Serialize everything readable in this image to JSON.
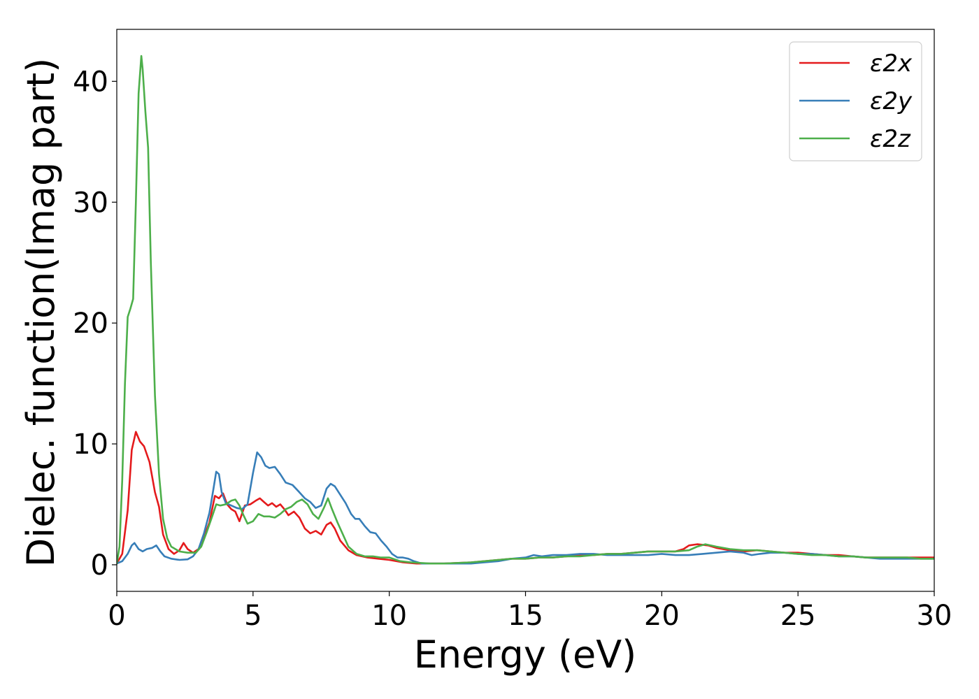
{
  "chart_data": {
    "type": "line",
    "title": "",
    "xlabel": "Energy (eV)",
    "ylabel": "Dielec. function(Imag part)",
    "xlim": [
      0,
      30
    ],
    "ylim": [
      -2.2,
      44.3
    ],
    "xticks": [
      0,
      5,
      10,
      15,
      20,
      25,
      30
    ],
    "yticks": [
      0,
      10,
      20,
      30,
      40
    ],
    "grid": false,
    "legend_position": "top-right",
    "series": [
      {
        "name": "ε2x",
        "color": "#e41a1c",
        "points": [
          [
            0,
            0.1
          ],
          [
            0.2,
            0.9
          ],
          [
            0.4,
            4.5
          ],
          [
            0.55,
            9.5
          ],
          [
            0.7,
            11.0
          ],
          [
            0.85,
            10.2
          ],
          [
            1.0,
            9.8
          ],
          [
            1.2,
            8.5
          ],
          [
            1.4,
            6.0
          ],
          [
            1.55,
            4.8
          ],
          [
            1.7,
            2.5
          ],
          [
            1.9,
            1.3
          ],
          [
            2.1,
            0.9
          ],
          [
            2.3,
            1.2
          ],
          [
            2.45,
            1.8
          ],
          [
            2.6,
            1.3
          ],
          [
            2.8,
            1.0
          ],
          [
            3.0,
            1.3
          ],
          [
            3.2,
            2.3
          ],
          [
            3.4,
            3.5
          ],
          [
            3.6,
            5.7
          ],
          [
            3.75,
            5.5
          ],
          [
            3.9,
            5.9
          ],
          [
            4.05,
            5.0
          ],
          [
            4.2,
            4.6
          ],
          [
            4.35,
            4.4
          ],
          [
            4.5,
            3.6
          ],
          [
            4.7,
            4.9
          ],
          [
            4.9,
            5.0
          ],
          [
            5.1,
            5.3
          ],
          [
            5.25,
            5.5
          ],
          [
            5.4,
            5.2
          ],
          [
            5.55,
            4.9
          ],
          [
            5.7,
            5.1
          ],
          [
            5.85,
            4.8
          ],
          [
            6.0,
            5.0
          ],
          [
            6.15,
            4.6
          ],
          [
            6.3,
            4.1
          ],
          [
            6.5,
            4.4
          ],
          [
            6.7,
            3.9
          ],
          [
            6.9,
            3.0
          ],
          [
            7.1,
            2.6
          ],
          [
            7.3,
            2.8
          ],
          [
            7.5,
            2.5
          ],
          [
            7.7,
            3.3
          ],
          [
            7.85,
            3.5
          ],
          [
            8.0,
            3.0
          ],
          [
            8.2,
            2.0
          ],
          [
            8.5,
            1.2
          ],
          [
            8.8,
            0.8
          ],
          [
            9.2,
            0.6
          ],
          [
            9.6,
            0.5
          ],
          [
            10.0,
            0.4
          ],
          [
            10.5,
            0.2
          ],
          [
            11.0,
            0.1
          ],
          [
            12.0,
            0.1
          ],
          [
            13.0,
            0.2
          ],
          [
            13.5,
            0.3
          ],
          [
            14.0,
            0.4
          ],
          [
            14.5,
            0.5
          ],
          [
            15.0,
            0.5
          ],
          [
            15.5,
            0.6
          ],
          [
            16.0,
            0.6
          ],
          [
            16.5,
            0.7
          ],
          [
            17.0,
            0.8
          ],
          [
            17.5,
            0.8
          ],
          [
            18.0,
            0.9
          ],
          [
            18.5,
            0.9
          ],
          [
            19.0,
            1.0
          ],
          [
            19.5,
            1.1
          ],
          [
            20.0,
            1.1
          ],
          [
            20.5,
            1.1
          ],
          [
            20.8,
            1.3
          ],
          [
            21.0,
            1.6
          ],
          [
            21.3,
            1.7
          ],
          [
            21.7,
            1.6
          ],
          [
            22.0,
            1.4
          ],
          [
            22.5,
            1.2
          ],
          [
            23.0,
            1.1
          ],
          [
            23.5,
            1.2
          ],
          [
            24.0,
            1.1
          ],
          [
            24.5,
            1.0
          ],
          [
            25.0,
            1.0
          ],
          [
            25.5,
            0.9
          ],
          [
            26.0,
            0.8
          ],
          [
            26.5,
            0.8
          ],
          [
            27.0,
            0.7
          ],
          [
            27.5,
            0.6
          ],
          [
            28.0,
            0.6
          ],
          [
            28.5,
            0.6
          ],
          [
            29.0,
            0.6
          ],
          [
            29.5,
            0.6
          ],
          [
            30.0,
            0.6
          ]
        ]
      },
      {
        "name": "ε2y",
        "color": "#377eb8",
        "points": [
          [
            0,
            0.1
          ],
          [
            0.2,
            0.3
          ],
          [
            0.4,
            0.9
          ],
          [
            0.55,
            1.6
          ],
          [
            0.65,
            1.8
          ],
          [
            0.8,
            1.3
          ],
          [
            0.95,
            1.1
          ],
          [
            1.1,
            1.3
          ],
          [
            1.3,
            1.4
          ],
          [
            1.45,
            1.6
          ],
          [
            1.6,
            1.1
          ],
          [
            1.75,
            0.7
          ],
          [
            2.0,
            0.5
          ],
          [
            2.3,
            0.4
          ],
          [
            2.6,
            0.45
          ],
          [
            2.8,
            0.7
          ],
          [
            3.0,
            1.3
          ],
          [
            3.2,
            2.6
          ],
          [
            3.4,
            4.3
          ],
          [
            3.55,
            6.3
          ],
          [
            3.65,
            7.7
          ],
          [
            3.75,
            7.5
          ],
          [
            3.85,
            6.0
          ],
          [
            4.0,
            5.1
          ],
          [
            4.2,
            4.9
          ],
          [
            4.4,
            4.7
          ],
          [
            4.6,
            4.6
          ],
          [
            4.8,
            5.0
          ],
          [
            5.0,
            7.6
          ],
          [
            5.15,
            9.3
          ],
          [
            5.3,
            8.9
          ],
          [
            5.45,
            8.2
          ],
          [
            5.6,
            8.0
          ],
          [
            5.8,
            8.1
          ],
          [
            6.0,
            7.5
          ],
          [
            6.2,
            6.8
          ],
          [
            6.45,
            6.6
          ],
          [
            6.7,
            6.0
          ],
          [
            6.9,
            5.5
          ],
          [
            7.1,
            5.2
          ],
          [
            7.3,
            4.7
          ],
          [
            7.5,
            4.9
          ],
          [
            7.7,
            6.3
          ],
          [
            7.85,
            6.7
          ],
          [
            8.0,
            6.5
          ],
          [
            8.2,
            5.8
          ],
          [
            8.4,
            5.1
          ],
          [
            8.6,
            4.2
          ],
          [
            8.75,
            3.8
          ],
          [
            8.9,
            3.8
          ],
          [
            9.1,
            3.2
          ],
          [
            9.3,
            2.7
          ],
          [
            9.5,
            2.6
          ],
          [
            9.7,
            2.0
          ],
          [
            9.9,
            1.5
          ],
          [
            10.1,
            0.9
          ],
          [
            10.3,
            0.6
          ],
          [
            10.5,
            0.6
          ],
          [
            10.7,
            0.5
          ],
          [
            10.9,
            0.3
          ],
          [
            11.2,
            0.1
          ],
          [
            12.0,
            0.1
          ],
          [
            13.0,
            0.1
          ],
          [
            13.5,
            0.2
          ],
          [
            14.0,
            0.3
          ],
          [
            14.5,
            0.5
          ],
          [
            15.0,
            0.6
          ],
          [
            15.3,
            0.8
          ],
          [
            15.6,
            0.7
          ],
          [
            16.0,
            0.8
          ],
          [
            16.5,
            0.8
          ],
          [
            17.0,
            0.9
          ],
          [
            17.5,
            0.9
          ],
          [
            18.0,
            0.8
          ],
          [
            18.5,
            0.8
          ],
          [
            19.0,
            0.8
          ],
          [
            19.5,
            0.8
          ],
          [
            20.0,
            0.9
          ],
          [
            20.5,
            0.8
          ],
          [
            21.0,
            0.8
          ],
          [
            21.5,
            0.9
          ],
          [
            22.0,
            1.0
          ],
          [
            22.5,
            1.1
          ],
          [
            23.0,
            1.0
          ],
          [
            23.3,
            0.8
          ],
          [
            23.6,
            0.9
          ],
          [
            24.0,
            1.0
          ],
          [
            24.5,
            1.0
          ],
          [
            25.0,
            0.9
          ],
          [
            25.5,
            0.9
          ],
          [
            26.0,
            0.8
          ],
          [
            26.5,
            0.7
          ],
          [
            27.0,
            0.7
          ],
          [
            27.5,
            0.6
          ],
          [
            28.0,
            0.5
          ],
          [
            28.5,
            0.5
          ],
          [
            29.0,
            0.5
          ],
          [
            29.5,
            0.5
          ],
          [
            30.0,
            0.5
          ]
        ]
      },
      {
        "name": "ε2z",
        "color": "#4daf4a",
        "points": [
          [
            0,
            0.1
          ],
          [
            0.1,
            1.5
          ],
          [
            0.2,
            7.0
          ],
          [
            0.3,
            15.0
          ],
          [
            0.4,
            20.5
          ],
          [
            0.5,
            21.2
          ],
          [
            0.6,
            22.0
          ],
          [
            0.7,
            30.0
          ],
          [
            0.8,
            39.0
          ],
          [
            0.9,
            42.1
          ],
          [
            0.95,
            41.0
          ],
          [
            1.05,
            37.5
          ],
          [
            1.15,
            34.5
          ],
          [
            1.25,
            25.0
          ],
          [
            1.4,
            14.0
          ],
          [
            1.55,
            7.5
          ],
          [
            1.7,
            3.8
          ],
          [
            1.85,
            2.2
          ],
          [
            2.0,
            1.5
          ],
          [
            2.3,
            1.1
          ],
          [
            2.6,
            1.0
          ],
          [
            2.9,
            1.0
          ],
          [
            3.1,
            1.5
          ],
          [
            3.3,
            2.7
          ],
          [
            3.5,
            4.0
          ],
          [
            3.65,
            5.0
          ],
          [
            3.8,
            4.9
          ],
          [
            4.0,
            5.0
          ],
          [
            4.2,
            5.3
          ],
          [
            4.35,
            5.4
          ],
          [
            4.5,
            4.9
          ],
          [
            4.65,
            4.1
          ],
          [
            4.8,
            3.4
          ],
          [
            5.0,
            3.6
          ],
          [
            5.2,
            4.2
          ],
          [
            5.4,
            4.0
          ],
          [
            5.6,
            4.0
          ],
          [
            5.8,
            3.9
          ],
          [
            6.0,
            4.2
          ],
          [
            6.2,
            4.6
          ],
          [
            6.4,
            4.8
          ],
          [
            6.6,
            5.2
          ],
          [
            6.8,
            5.4
          ],
          [
            7.0,
            5.0
          ],
          [
            7.2,
            4.2
          ],
          [
            7.4,
            3.8
          ],
          [
            7.6,
            4.7
          ],
          [
            7.75,
            5.5
          ],
          [
            7.9,
            4.6
          ],
          [
            8.1,
            3.5
          ],
          [
            8.3,
            2.5
          ],
          [
            8.5,
            1.5
          ],
          [
            8.8,
            0.9
          ],
          [
            9.1,
            0.7
          ],
          [
            9.4,
            0.7
          ],
          [
            9.7,
            0.6
          ],
          [
            10.0,
            0.6
          ],
          [
            10.4,
            0.3
          ],
          [
            10.8,
            0.2
          ],
          [
            11.5,
            0.1
          ],
          [
            12.0,
            0.1
          ],
          [
            13.0,
            0.2
          ],
          [
            13.5,
            0.3
          ],
          [
            14.0,
            0.4
          ],
          [
            14.5,
            0.5
          ],
          [
            15.0,
            0.5
          ],
          [
            15.5,
            0.6
          ],
          [
            16.0,
            0.6
          ],
          [
            16.5,
            0.7
          ],
          [
            17.0,
            0.7
          ],
          [
            17.5,
            0.8
          ],
          [
            18.0,
            0.9
          ],
          [
            18.5,
            0.9
          ],
          [
            19.0,
            1.0
          ],
          [
            19.5,
            1.1
          ],
          [
            20.0,
            1.1
          ],
          [
            20.5,
            1.1
          ],
          [
            21.0,
            1.2
          ],
          [
            21.3,
            1.5
          ],
          [
            21.6,
            1.7
          ],
          [
            22.0,
            1.5
          ],
          [
            22.5,
            1.3
          ],
          [
            23.0,
            1.2
          ],
          [
            23.5,
            1.2
          ],
          [
            24.0,
            1.1
          ],
          [
            24.5,
            1.0
          ],
          [
            25.0,
            0.9
          ],
          [
            25.5,
            0.8
          ],
          [
            26.0,
            0.8
          ],
          [
            26.5,
            0.7
          ],
          [
            27.0,
            0.7
          ],
          [
            27.5,
            0.6
          ],
          [
            28.0,
            0.6
          ],
          [
            28.5,
            0.6
          ],
          [
            29.0,
            0.6
          ],
          [
            29.5,
            0.5
          ],
          [
            30.0,
            0.5
          ]
        ]
      }
    ]
  }
}
